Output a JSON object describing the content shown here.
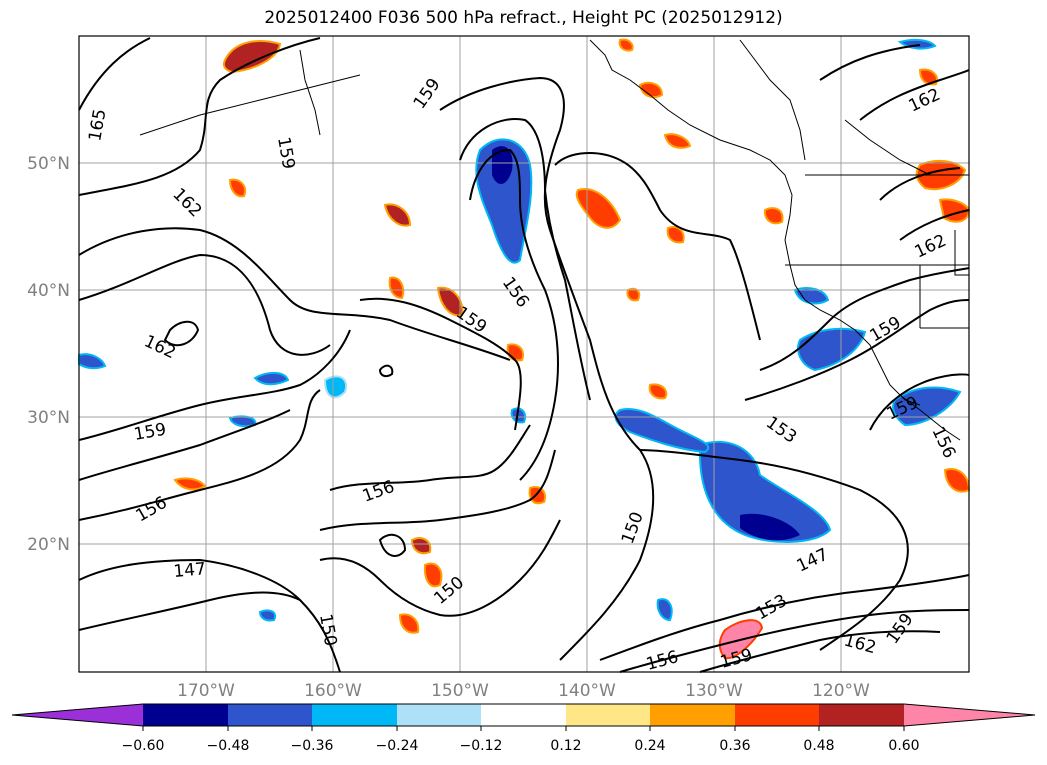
{
  "title": "2025012400 F036 500 hPa refract., Height PC (2025012912)",
  "lat_labels": [
    "50°N",
    "40°N",
    "30°N",
    "20°N"
  ],
  "lon_labels": [
    "170°W",
    "160°W",
    "150°W",
    "140°W",
    "130°W",
    "120°W"
  ],
  "colorbar": {
    "ticks": [
      "−0.60",
      "−0.48",
      "−0.36",
      "−0.24",
      "−0.12",
      "0.12",
      "0.24",
      "0.36",
      "0.48",
      "0.60"
    ],
    "colors": [
      "#9b30d9",
      "#000090",
      "#2e55cc",
      "#00b8f5",
      "#aee0f8",
      "#ffffff",
      "#ffe787",
      "#ff9f00",
      "#ff3d00",
      "#b22222",
      "#ff85a8"
    ]
  },
  "contour_labels": [
    "165",
    "162",
    "159",
    "159",
    "159",
    "162",
    "162",
    "156",
    "159",
    "162",
    "159",
    "159",
    "156",
    "153",
    "156",
    "156",
    "147",
    "150",
    "150",
    "150",
    "147",
    "153",
    "159",
    "162",
    "156",
    "159"
  ],
  "colors": {
    "contour": "#000000",
    "grid": "#a0a0a0",
    "coast": "#000000"
  }
}
